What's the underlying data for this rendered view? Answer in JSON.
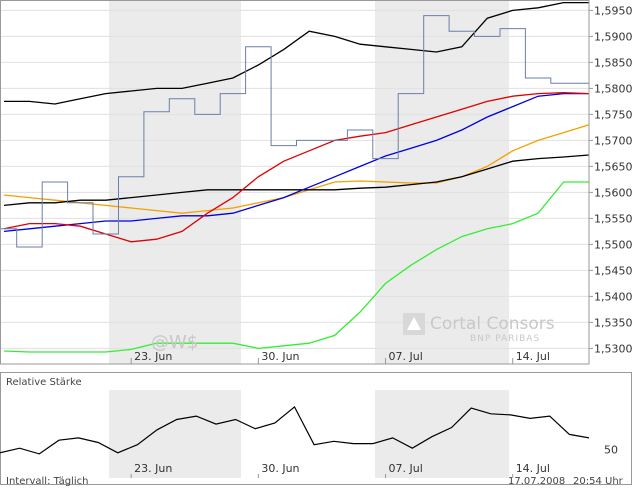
{
  "watermark_text": "@W$",
  "logo": {
    "name": "Cortal Consors",
    "sub": "BNP PARIBAS",
    "icon": "cortal-consors-logo-icon"
  },
  "footer": {
    "interval": "Intervall: Täglich",
    "date": "17.07.2008",
    "time": "20:54 Uhr"
  },
  "colors": {
    "background": "#ffffff",
    "band": "#ebebeb",
    "frame": "#999999",
    "price": "#6b7fa8",
    "bollinger": "#000000",
    "ma_black": "#000000",
    "ma_red": "#e00000",
    "ma_blue": "#0000dd",
    "ma_orange": "#f5a000",
    "ma_green": "#33ee33",
    "rsi": "#000000"
  },
  "chart_data": [
    {
      "type": "line",
      "x": [
        "16.06.2008",
        "17.06.2008",
        "18.06.2008",
        "19.06.2008",
        "20.06.2008",
        "23.06.2008",
        "24.06.2008",
        "25.06.2008",
        "26.06.2008",
        "27.06.2008",
        "30.06.2008",
        "01.07.2008",
        "02.07.2008",
        "03.07.2008",
        "04.07.2008",
        "07.07.2008",
        "08.07.2008",
        "09.07.2008",
        "10.07.2008",
        "11.07.2008",
        "14.07.2008",
        "15.07.2008",
        "16.07.2008",
        "17.07.2008"
      ],
      "x_tick_labels": [
        "23. Jun",
        "30. Jun",
        "07. Jul",
        "14. Jul"
      ],
      "y_tick_labels": [
        "1,5300",
        "1,5350",
        "1,5400",
        "1,5450",
        "1,5500",
        "1,5550",
        "1,5600",
        "1,5650",
        "1,5700",
        "1,5750",
        "1,5800",
        "1,5850",
        "1,5900",
        "1,5950"
      ],
      "ylim": [
        1.527,
        1.597
      ],
      "y_axis_side": "right",
      "grid": true,
      "series": [
        {
          "role": "price-steps",
          "values": [
            1.553,
            1.5495,
            1.562,
            1.558,
            1.552,
            1.563,
            1.5755,
            1.578,
            1.575,
            1.579,
            1.588,
            1.569,
            1.57,
            1.57,
            1.572,
            1.5665,
            1.579,
            1.594,
            1.591,
            1.59,
            1.5915,
            1.582,
            1.581,
            1.581
          ]
        },
        {
          "role": "bollinger-upper",
          "values": [
            1.5775,
            1.5775,
            1.577,
            1.578,
            1.579,
            1.5795,
            1.58,
            1.58,
            1.581,
            1.582,
            1.5845,
            1.5875,
            1.591,
            1.59,
            1.5885,
            1.588,
            1.5875,
            1.587,
            1.588,
            1.5935,
            1.595,
            1.5955,
            1.5965,
            1.5965
          ]
        },
        {
          "role": "ma-black",
          "values": [
            1.5575,
            1.558,
            1.558,
            1.5585,
            1.5585,
            1.559,
            1.5595,
            1.56,
            1.5605,
            1.5605,
            1.5605,
            1.5605,
            1.5605,
            1.5605,
            1.5608,
            1.561,
            1.5615,
            1.562,
            1.563,
            1.5645,
            1.566,
            1.5665,
            1.5668,
            1.5672
          ]
        },
        {
          "role": "ma-red",
          "values": [
            1.553,
            1.554,
            1.554,
            1.5535,
            1.552,
            1.5505,
            1.551,
            1.5525,
            1.556,
            1.559,
            1.563,
            1.566,
            1.568,
            1.57,
            1.5708,
            1.5715,
            1.573,
            1.5745,
            1.576,
            1.5775,
            1.5785,
            1.579,
            1.5792,
            1.579
          ]
        },
        {
          "role": "ma-blue",
          "values": [
            1.5525,
            1.553,
            1.5535,
            1.554,
            1.5545,
            1.5545,
            1.555,
            1.5555,
            1.5555,
            1.556,
            1.5575,
            1.559,
            1.561,
            1.563,
            1.565,
            1.567,
            1.5685,
            1.57,
            1.572,
            1.5745,
            1.5765,
            1.5785,
            1.579,
            1.579
          ]
        },
        {
          "role": "ma-orange",
          "values": [
            1.5595,
            1.559,
            1.5585,
            1.558,
            1.5575,
            1.557,
            1.5565,
            1.556,
            1.5565,
            1.557,
            1.558,
            1.559,
            1.5605,
            1.562,
            1.5622,
            1.562,
            1.5618,
            1.5618,
            1.563,
            1.565,
            1.568,
            1.57,
            1.5715,
            1.573
          ]
        },
        {
          "role": "ma-green",
          "values": [
            1.5295,
            1.5293,
            1.5293,
            1.5293,
            1.5293,
            1.5298,
            1.531,
            1.531,
            1.531,
            1.531,
            1.53,
            1.5305,
            1.531,
            1.5325,
            1.537,
            1.5425,
            1.546,
            1.549,
            1.5515,
            1.553,
            1.554,
            1.556,
            1.562,
            1.562
          ]
        }
      ]
    },
    {
      "type": "line",
      "title": "Relative Stärke",
      "x_tick_labels": [
        "23. Jun",
        "30. Jun",
        "07. Jul",
        "14. Jul"
      ],
      "y_tick_labels": [
        "50"
      ],
      "ylim": [
        25,
        100
      ],
      "y_axis_side": "right",
      "grid": false,
      "series": [
        {
          "role": "rsi",
          "values": [
            47,
            51,
            46,
            58,
            60,
            56,
            47,
            54,
            67,
            76,
            79,
            72,
            76,
            68,
            73,
            87,
            54,
            57,
            55,
            55,
            60,
            51,
            61,
            69,
            86,
            81,
            80,
            77,
            79,
            63,
            60
          ]
        }
      ]
    }
  ]
}
